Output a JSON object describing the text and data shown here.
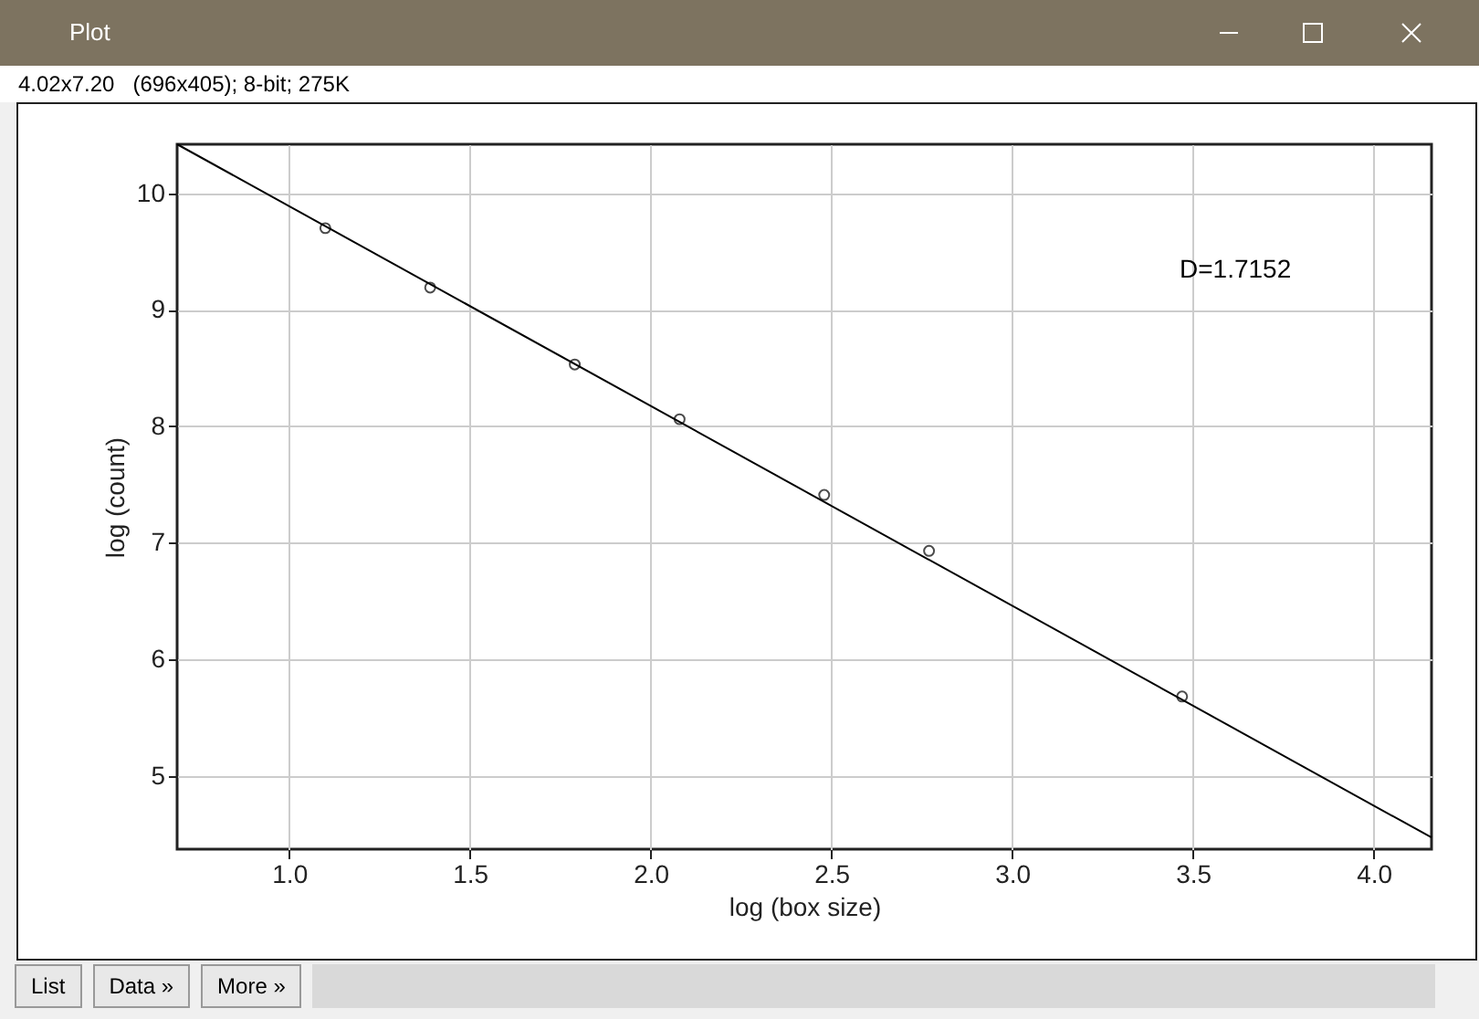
{
  "chart_data": {
    "type": "scatter",
    "title": "Plot",
    "subtitle": "4.02x7.20   (696x405); 8-bit; 275K",
    "xlabel": "log (box size)",
    "ylabel": "log (count)",
    "annotations": [
      "D=1.7152",
      "List",
      "Data »",
      "More »"
    ],
    "series": [
      {
        "color": "#000000",
        "marker": "circle",
        "x": [
          1.1,
          1.39,
          1.79,
          2.08,
          2.48,
          2.77,
          3.47
        ],
        "values": [
          9.7,
          9.19,
          8.53,
          8.06,
          7.41,
          6.93,
          5.68
        ]
      },
      {
        "type": "line",
        "color": "#000000",
        "x": [
          0.69,
          4.16
        ],
        "values": [
          10.42,
          4.47
        ]
      }
    ],
    "xlim": [
      0.69,
      4.16
    ],
    "ylim": [
      4.37,
      10.42
    ],
    "xticks": [
      {
        "value": 1,
        "label": "1.0"
      },
      {
        "value": 1.5,
        "label": "1.5"
      },
      {
        "value": 2,
        "label": "2.0"
      },
      {
        "value": 2.5,
        "label": "2.5"
      },
      {
        "value": 3,
        "label": "3.0"
      },
      {
        "value": 3.5,
        "label": "3.5"
      },
      {
        "value": 4,
        "label": "4.0"
      }
    ],
    "yticks": [
      5,
      6,
      7,
      8,
      9,
      10
    ],
    "grid": true
  }
}
